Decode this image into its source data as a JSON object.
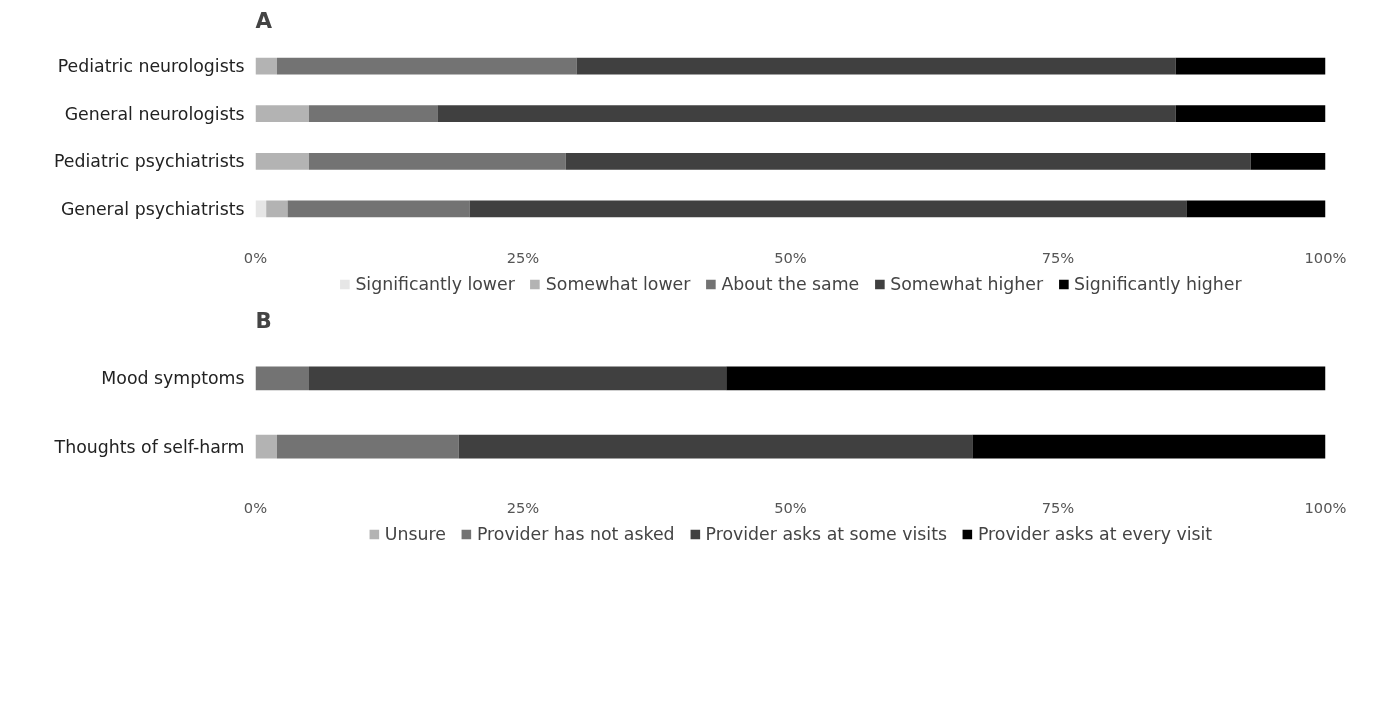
{
  "chart_data": [
    {
      "type": "bar",
      "title": "A",
      "orientation": "horizontal",
      "stacked": true,
      "categories": [
        "Pediatric neurologists",
        "General neurologists",
        "Pediatric psychiatrists",
        "General psychiatrists"
      ],
      "series": [
        {
          "name": "Significantly lower",
          "color": "#e6e6e6",
          "values": [
            0,
            0,
            0,
            1
          ]
        },
        {
          "name": "Somewhat lower",
          "color": "#b3b3b3",
          "values": [
            2,
            5,
            5,
            2
          ]
        },
        {
          "name": "About the same",
          "color": "#737373",
          "values": [
            28,
            12,
            24,
            17
          ]
        },
        {
          "name": "Somewhat higher",
          "color": "#404040",
          "values": [
            56,
            69,
            64,
            67
          ]
        },
        {
          "name": "Significantly higher",
          "color": "#000000",
          "values": [
            14,
            14,
            7,
            13
          ]
        }
      ],
      "xlim": [
        0,
        100
      ],
      "xticks": [
        {
          "value": 0,
          "label": "0%"
        },
        {
          "value": 25,
          "label": "25%"
        },
        {
          "value": 50,
          "label": "50%"
        },
        {
          "value": 75,
          "label": "75%"
        },
        {
          "value": 100,
          "label": "100%"
        }
      ],
      "grid": false,
      "legend": "bottom"
    },
    {
      "type": "bar",
      "title": "B",
      "orientation": "horizontal",
      "stacked": true,
      "categories": [
        "Mood symptoms",
        "Thoughts of self-harm"
      ],
      "series": [
        {
          "name": "Unsure",
          "color": "#b3b3b3",
          "values": [
            0,
            2
          ]
        },
        {
          "name": "Provider has not asked",
          "color": "#737373",
          "values": [
            5,
            17
          ]
        },
        {
          "name": "Provider asks at some visits",
          "color": "#404040",
          "values": [
            39,
            48
          ]
        },
        {
          "name": "Provider asks at every visit",
          "color": "#000000",
          "values": [
            56,
            33
          ]
        }
      ],
      "xlim": [
        0,
        100
      ],
      "xticks": [
        {
          "value": 0,
          "label": "0%"
        },
        {
          "value": 25,
          "label": "25%"
        },
        {
          "value": 50,
          "label": "50%"
        },
        {
          "value": 75,
          "label": "75%"
        },
        {
          "value": 100,
          "label": "100%"
        }
      ],
      "grid": false,
      "legend": "bottom"
    }
  ]
}
